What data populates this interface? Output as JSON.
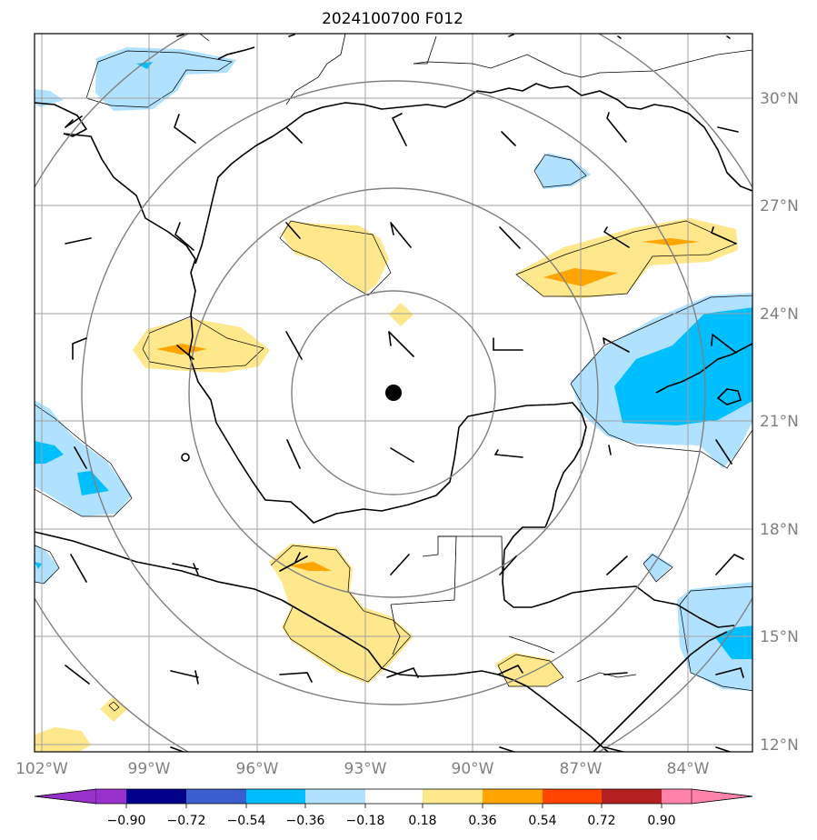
{
  "title": "2024100700 F012",
  "map": {
    "lon_range": [
      -102,
      -82.5
    ],
    "lat_range": [
      11.8,
      31.8
    ],
    "lon_ticks": [
      {
        "value": -102,
        "label": "102°W"
      },
      {
        "value": -99,
        "label": "99°W"
      },
      {
        "value": -96,
        "label": "96°W"
      },
      {
        "value": -93,
        "label": "93°W"
      },
      {
        "value": -90,
        "label": "90°W"
      },
      {
        "value": -87,
        "label": "87°W"
      },
      {
        "value": -84,
        "label": "84°W"
      }
    ],
    "lat_ticks": [
      {
        "value": 30,
        "label": "30°N"
      },
      {
        "value": 27,
        "label": "27°N"
      },
      {
        "value": 24,
        "label": "24°N"
      },
      {
        "value": 21,
        "label": "21°N"
      },
      {
        "value": 18,
        "label": "18°N"
      },
      {
        "value": 15,
        "label": "15°N"
      },
      {
        "value": 12,
        "label": "12°N"
      }
    ],
    "grid_color": "#a0a0a0",
    "ring_color": "#808080",
    "storm_center": {
      "lon": -92.3,
      "lat": 21.8
    },
    "ring_radii_deg": [
      2.8,
      5.7,
      8.6,
      11.5
    ]
  },
  "colorbar": {
    "levels": [
      "−0.90",
      "−0.72",
      "−0.54",
      "−0.36",
      "−0.18",
      "0.18",
      "0.36",
      "0.54",
      "0.72",
      "0.90"
    ],
    "colors": [
      "#9932cc",
      "#00008b",
      "#3a5fcd",
      "#00bfff",
      "#b0e2ff",
      "#ffffff",
      "#ffe78c",
      "#ffa500",
      "#ff4500",
      "#b22222",
      "#ff82ab"
    ]
  },
  "fills": {
    "light_blue": "#b0e2ff",
    "blue": "#00bfff",
    "light_yellow": "#ffe78c",
    "orange": "#ffa500"
  }
}
